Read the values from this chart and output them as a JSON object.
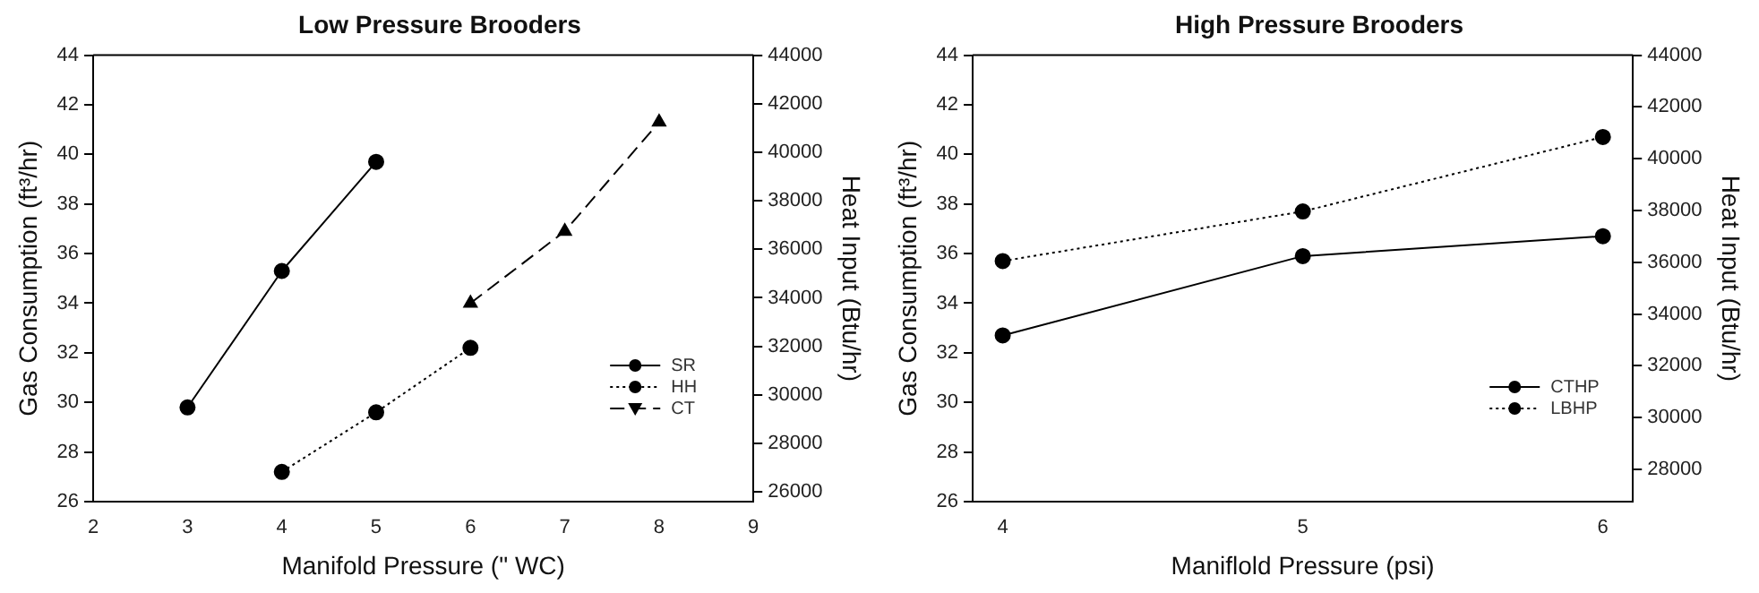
{
  "chart_data": [
    {
      "type": "line",
      "title": "Low Pressure Brooders",
      "xlabel": "Manifold Pressure (\" WC)",
      "ylabel": "Gas Consumption (ft³/hr)",
      "y2label": "Heat Input (Btu/hr)",
      "xlim": [
        2,
        9
      ],
      "xticks": [
        2,
        3,
        4,
        5,
        6,
        7,
        8,
        9
      ],
      "ylim": [
        26,
        44
      ],
      "yticks": [
        26,
        28,
        30,
        32,
        34,
        36,
        38,
        40,
        42,
        44
      ],
      "y2lim": [
        25600,
        44000
      ],
      "y2ticks": [
        26000,
        28000,
        30000,
        32000,
        34000,
        36000,
        38000,
        40000,
        42000,
        44000
      ],
      "grid": false,
      "legend": "bottom right",
      "series": [
        {
          "name": "SR",
          "color": "#000000",
          "x": [
            3,
            4,
            5
          ],
          "values": [
            29.8,
            35.3,
            39.7
          ],
          "marker": "circle",
          "line_style": "solid"
        },
        {
          "name": "HH",
          "color": "#000000",
          "x": [
            4,
            5,
            6
          ],
          "values": [
            27.2,
            29.6,
            32.2
          ],
          "marker": "circle",
          "line_style": "dotted"
        },
        {
          "name": "CT",
          "color": "#000000",
          "x": [
            6,
            7,
            8
          ],
          "values": [
            34.0,
            36.9,
            41.3
          ],
          "marker": "triangle",
          "line_style": "dashed"
        }
      ]
    },
    {
      "type": "line",
      "title": "High Pressure Brooders",
      "xlabel": "Maniflold Pressure (psi)",
      "ylabel": "Gas Consumption (ft³/hr)",
      "y2label": "Heat Input (Btu/hr)",
      "xlim": [
        3.9,
        6.1
      ],
      "xticks": [
        4,
        5,
        6
      ],
      "ylim": [
        26,
        44
      ],
      "yticks": [
        26,
        28,
        30,
        32,
        34,
        36,
        38,
        40,
        42,
        44
      ],
      "y2lim": [
        26750,
        44000
      ],
      "y2ticks": [
        28000,
        30000,
        32000,
        34000,
        36000,
        38000,
        40000,
        42000,
        44000
      ],
      "grid": false,
      "legend": "bottom right",
      "series": [
        {
          "name": "CTHP",
          "color": "#000000",
          "x": [
            4,
            5,
            6
          ],
          "values": [
            32.7,
            35.9,
            36.7
          ],
          "marker": "circle",
          "line_style": "solid"
        },
        {
          "name": "LBHP",
          "color": "#000000",
          "x": [
            4,
            5,
            6
          ],
          "values": [
            35.7,
            37.7,
            40.7
          ],
          "marker": "circle",
          "line_style": "dotted"
        }
      ]
    }
  ]
}
